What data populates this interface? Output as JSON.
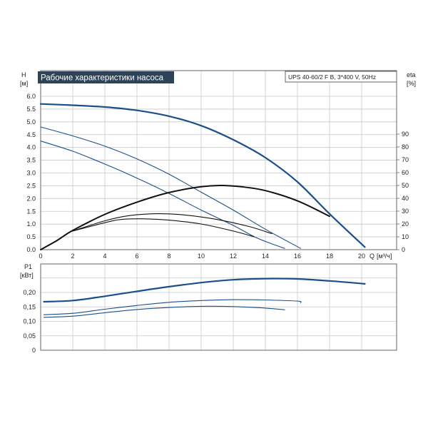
{
  "chart_data": [
    {
      "type": "line",
      "title": "Рабочие характеристики насоса",
      "model_label": "UPS 40-60/2 F B, 3*400 V, 50Hz",
      "ylabel": "H",
      "yunit": "[м]",
      "y2label": "eta",
      "y2unit": "[%]",
      "xlabel": "Q",
      "xunit": "[м³/ч]",
      "xlim": [
        0,
        22
      ],
      "ylim": [
        0,
        6.5
      ],
      "y2lim": [
        0,
        100
      ],
      "x_ticks": [
        "0",
        "2",
        "4",
        "6",
        "8",
        "10",
        "12",
        "14",
        "16",
        "18",
        "20"
      ],
      "y_ticks": [
        "0.0",
        "0.5",
        "1.0",
        "1.5",
        "2.0",
        "2.5",
        "3.0",
        "3.5",
        "4.0",
        "4.5",
        "5.0",
        "5.5",
        "6.0"
      ],
      "y2_ticks": [
        "0",
        "10",
        "20",
        "30",
        "40",
        "50",
        "60",
        "70",
        "80",
        "90"
      ],
      "grid": true,
      "series": [
        {
          "axis": "left",
          "color": "#1a4f8a",
          "width": 2.2,
          "points": [
            [
              0,
              5.7
            ],
            [
              2,
              5.65
            ],
            [
              4,
              5.58
            ],
            [
              6,
              5.45
            ],
            [
              8,
              5.22
            ],
            [
              10,
              4.85
            ],
            [
              12,
              4.3
            ],
            [
              14,
              3.6
            ],
            [
              16,
              2.65
            ],
            [
              18,
              1.4
            ],
            [
              20.2,
              0.1
            ]
          ]
        },
        {
          "axis": "left",
          "color": "#1a4f8a",
          "width": 1.1,
          "points": [
            [
              0,
              4.8
            ],
            [
              2,
              4.45
            ],
            [
              4,
              4.05
            ],
            [
              6,
              3.55
            ],
            [
              8,
              2.95
            ],
            [
              10,
              2.25
            ],
            [
              12,
              1.55
            ],
            [
              14,
              0.8
            ],
            [
              16.2,
              0.05
            ]
          ]
        },
        {
          "axis": "left",
          "color": "#1a4f8a",
          "width": 1.1,
          "points": [
            [
              0,
              4.25
            ],
            [
              2,
              3.85
            ],
            [
              4,
              3.35
            ],
            [
              6,
              2.8
            ],
            [
              8,
              2.2
            ],
            [
              10,
              1.55
            ],
            [
              12,
              0.95
            ],
            [
              13.5,
              0.45
            ],
            [
              15.2,
              0.05
            ]
          ]
        },
        {
          "axis": "right",
          "color": "#111111",
          "width": 2.0,
          "points": [
            [
              0,
              0
            ],
            [
              1,
              7
            ],
            [
              2,
              15
            ],
            [
              4,
              27.5
            ],
            [
              6,
              37
            ],
            [
              8,
              44.5
            ],
            [
              10,
              49
            ],
            [
              11.2,
              50
            ],
            [
              12.5,
              49
            ],
            [
              14,
              46
            ],
            [
              16,
              38
            ],
            [
              18,
              26
            ]
          ]
        },
        {
          "axis": "right",
          "color": "#111111",
          "width": 1.1,
          "points": [
            [
              2,
              14.5
            ],
            [
              4,
              22.5
            ],
            [
              5.5,
              26.5
            ],
            [
              7.3,
              28
            ],
            [
              9,
              27
            ],
            [
              11,
              23.5
            ],
            [
              13,
              18
            ],
            [
              14.4,
              12.5
            ]
          ]
        },
        {
          "axis": "right",
          "color": "#111111",
          "width": 1.1,
          "points": [
            [
              2,
              14.5
            ],
            [
              4,
              21
            ],
            [
              5,
              23.5
            ],
            [
              6.5,
              24
            ],
            [
              8,
              23
            ],
            [
              10,
              20
            ],
            [
              12,
              14.5
            ],
            [
              13.3,
              10
            ]
          ]
        }
      ]
    },
    {
      "type": "line",
      "ylabel": "P1",
      "yunit": "[кВт]",
      "xlim": [
        0,
        22
      ],
      "ylim": [
        0,
        0.3
      ],
      "y_ticks": [
        "0",
        "0,05",
        "0,10",
        "0,15",
        "0,20"
      ],
      "grid": true,
      "series": [
        {
          "color": "#1a4f8a",
          "width": 2.2,
          "points": [
            [
              0.2,
              0.168
            ],
            [
              2,
              0.172
            ],
            [
              4,
              0.187
            ],
            [
              6,
              0.204
            ],
            [
              8,
              0.22
            ],
            [
              10,
              0.234
            ],
            [
              12,
              0.244
            ],
            [
              14,
              0.248
            ],
            [
              16,
              0.247
            ],
            [
              18,
              0.24
            ],
            [
              20.2,
              0.23
            ]
          ]
        },
        {
          "color": "#1a4f8a",
          "width": 1.1,
          "points": [
            [
              0.2,
              0.123
            ],
            [
              2,
              0.128
            ],
            [
              4,
              0.142
            ],
            [
              6,
              0.155
            ],
            [
              8,
              0.166
            ],
            [
              10,
              0.172
            ],
            [
              12,
              0.175
            ],
            [
              14,
              0.174
            ],
            [
              16,
              0.17
            ],
            [
              16.2,
              0.165
            ]
          ]
        },
        {
          "color": "#1a4f8a",
          "width": 1.1,
          "points": [
            [
              0.2,
              0.114
            ],
            [
              2,
              0.118
            ],
            [
              4,
              0.13
            ],
            [
              6,
              0.141
            ],
            [
              8,
              0.148
            ],
            [
              10,
              0.152
            ],
            [
              12,
              0.151
            ],
            [
              14,
              0.146
            ],
            [
              15.2,
              0.14
            ]
          ]
        }
      ]
    }
  ]
}
